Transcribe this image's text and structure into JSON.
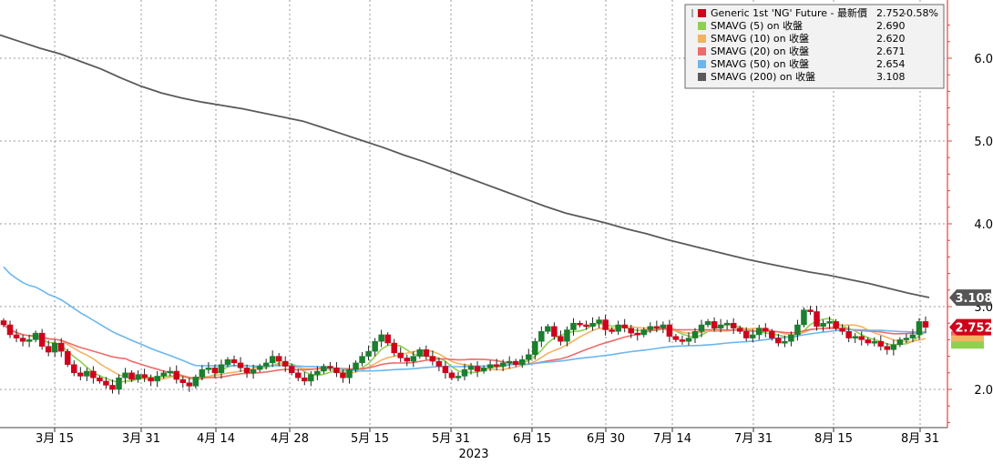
{
  "chart_data": {
    "type": "candlestick",
    "year_label": "2023",
    "x_tick_labels": [
      "3月 15",
      "3月 31",
      "4月 14",
      "4月 28",
      "5月 15",
      "5月 31",
      "6月 15",
      "6月 30",
      "7月 14",
      "7月 31",
      "8月 15",
      "8月 31"
    ],
    "y_tick_labels": [
      "2.000",
      "3.000",
      "4.000",
      "5.000",
      "6.000"
    ],
    "y_ticks": [
      2,
      3,
      4,
      5,
      6
    ],
    "ylim": [
      1.5,
      6.6
    ],
    "grid": true,
    "legend_position": "top-right",
    "legend": [
      {
        "name": "Generic 1st 'NG' Future - 最新價",
        "value": "2.752",
        "change": "-0.58%",
        "color": "#d0021b"
      },
      {
        "name": "SMAVG (5)  on 收盤",
        "value": "2.690",
        "color": "#8fd14f"
      },
      {
        "name": "SMAVG (10)  on 收盤",
        "value": "2.620",
        "color": "#f5b262"
      },
      {
        "name": "SMAVG (20)  on 收盤",
        "value": "2.671",
        "color": "#ef6b6b"
      },
      {
        "name": "SMAVG (50)  on 收盤",
        "value": "2.654",
        "color": "#6ab7ee"
      },
      {
        "name": "SMAVG (200)  on 收盤",
        "value": "3.108",
        "color": "#5a5a5a"
      }
    ],
    "last_price_badge": {
      "label": "2.752",
      "value": 2.752,
      "color": "#d0021b"
    },
    "sma200_badge": {
      "label": "3.108",
      "value": 3.108,
      "color": "#555555"
    },
    "colors": {
      "up": "#1a7f2e",
      "down": "#d0021b",
      "sma5": "#8fd14f",
      "sma10": "#f5b262",
      "sma20": "#ef6b6b",
      "sma50": "#6ab7ee",
      "sma200": "#5a5a5a",
      "axis": "#e8413c"
    },
    "closes": [
      2.78,
      2.66,
      2.62,
      2.58,
      2.6,
      2.68,
      2.52,
      2.45,
      2.56,
      2.46,
      2.3,
      2.2,
      2.16,
      2.22,
      2.14,
      2.1,
      2.05,
      2.0,
      2.14,
      2.2,
      2.12,
      2.18,
      2.14,
      2.1,
      2.16,
      2.2,
      2.22,
      2.12,
      2.08,
      2.04,
      2.15,
      2.24,
      2.26,
      2.2,
      2.3,
      2.36,
      2.32,
      2.26,
      2.2,
      2.24,
      2.28,
      2.32,
      2.4,
      2.34,
      2.28,
      2.2,
      2.14,
      2.1,
      2.18,
      2.22,
      2.28,
      2.26,
      2.2,
      2.14,
      2.24,
      2.32,
      2.4,
      2.46,
      2.58,
      2.66,
      2.56,
      2.44,
      2.38,
      2.34,
      2.4,
      2.48,
      2.4,
      2.34,
      2.28,
      2.2,
      2.14,
      2.16,
      2.24,
      2.28,
      2.22,
      2.26,
      2.3,
      2.28,
      2.32,
      2.34,
      2.3,
      2.36,
      2.42,
      2.58,
      2.7,
      2.76,
      2.64,
      2.58,
      2.72,
      2.8,
      2.78,
      2.76,
      2.8,
      2.84,
      2.72,
      2.7,
      2.78,
      2.74,
      2.68,
      2.66,
      2.72,
      2.76,
      2.74,
      2.78,
      2.64,
      2.6,
      2.58,
      2.62,
      2.7,
      2.78,
      2.82,
      2.74,
      2.78,
      2.8,
      2.74,
      2.7,
      2.62,
      2.66,
      2.74,
      2.7,
      2.62,
      2.56,
      2.58,
      2.66,
      2.78,
      2.96,
      2.94,
      2.76,
      2.8,
      2.82,
      2.74,
      2.7,
      2.62,
      2.64,
      2.6,
      2.56,
      2.58,
      2.52,
      2.48,
      2.54,
      2.6,
      2.62,
      2.66,
      2.82,
      2.75
    ],
    "sma200": [
      6.28,
      6.2,
      6.12,
      6.05,
      5.96,
      5.87,
      5.76,
      5.66,
      5.58,
      5.52,
      5.47,
      5.43,
      5.39,
      5.34,
      5.29,
      5.24,
      5.16,
      5.08,
      5.0,
      4.92,
      4.83,
      4.75,
      4.66,
      4.57,
      4.48,
      4.39,
      4.3,
      4.21,
      4.13,
      4.07,
      4.01,
      3.94,
      3.88,
      3.81,
      3.75,
      3.69,
      3.63,
      3.57,
      3.52,
      3.47,
      3.42,
      3.38,
      3.33,
      3.28,
      3.22,
      3.16,
      3.11
    ]
  }
}
